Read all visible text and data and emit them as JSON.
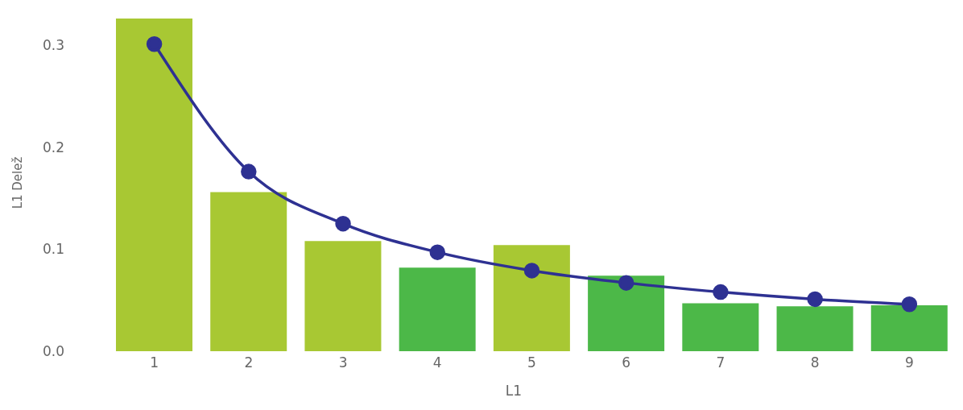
{
  "chart_data": {
    "type": "bar",
    "xlabel": "L1",
    "ylabel": "L1 Delež",
    "categories": [
      "1",
      "2",
      "3",
      "4",
      "5",
      "6",
      "7",
      "8",
      "9"
    ],
    "series": [
      {
        "colors": [
          "#a8c833",
          "#a8c833",
          "#a8c833",
          "#4cb848",
          "#a8c833",
          "#4cb848",
          "#4cb848",
          "#4cb848",
          "#4cb848"
        ],
        "values": [
          0.326,
          0.156,
          0.108,
          0.082,
          0.104,
          0.074,
          0.047,
          0.044,
          0.045
        ]
      },
      {
        "type": "line",
        "color": "#2e3192",
        "marker": "circle",
        "values": [
          0.301,
          0.176,
          0.125,
          0.097,
          0.079,
          0.067,
          0.058,
          0.051,
          0.046
        ]
      }
    ],
    "ylim": [
      0,
      0.33
    ],
    "yticks": [
      {
        "value": 0,
        "label": "0.0"
      },
      {
        "value": 0.1,
        "label": "0.1"
      },
      {
        "value": 0.2,
        "label": "0.2"
      },
      {
        "value": 0.3,
        "label": "0.3"
      }
    ],
    "grid": false,
    "legend": false
  }
}
